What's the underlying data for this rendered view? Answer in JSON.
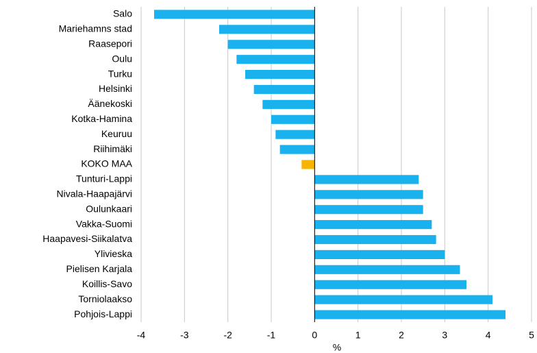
{
  "chart_data": {
    "type": "barh",
    "categories": [
      "Salo",
      "Mariehamns stad",
      "Raasepori",
      "Oulu",
      "Turku",
      "Helsinki",
      "Äänekoski",
      "Kotka-Hamina",
      "Keuruu",
      "Riihimäki",
      "KOKO MAA",
      "Tunturi-Lappi",
      "Nivala-Haapajärvi",
      "Oulunkaari",
      "Vakka-Suomi",
      "Haapavesi-Siikalatva",
      "Ylivieska",
      "Pielisen Karjala",
      "Koillis-Savo",
      "Torniolaakso",
      "Pohjois-Lappi"
    ],
    "values": [
      -3.7,
      -2.2,
      -2.0,
      -1.8,
      -1.6,
      -1.4,
      -1.2,
      -1.0,
      -0.9,
      -0.8,
      -0.3,
      2.4,
      2.5,
      2.5,
      2.7,
      2.8,
      3.0,
      3.35,
      3.5,
      4.1,
      4.4
    ],
    "colors": [
      "#1ab2ee",
      "#1ab2ee",
      "#1ab2ee",
      "#1ab2ee",
      "#1ab2ee",
      "#1ab2ee",
      "#1ab2ee",
      "#1ab2ee",
      "#1ab2ee",
      "#1ab2ee",
      "#f7b500",
      "#1ab2ee",
      "#1ab2ee",
      "#1ab2ee",
      "#1ab2ee",
      "#1ab2ee",
      "#1ab2ee",
      "#1ab2ee",
      "#1ab2ee",
      "#1ab2ee",
      "#1ab2ee"
    ],
    "xlabel": "%",
    "xlim": [
      -4,
      5
    ],
    "xticks": [
      -4,
      -3,
      -2,
      -1,
      0,
      1,
      2,
      3,
      4,
      5
    ],
    "grid": true
  }
}
